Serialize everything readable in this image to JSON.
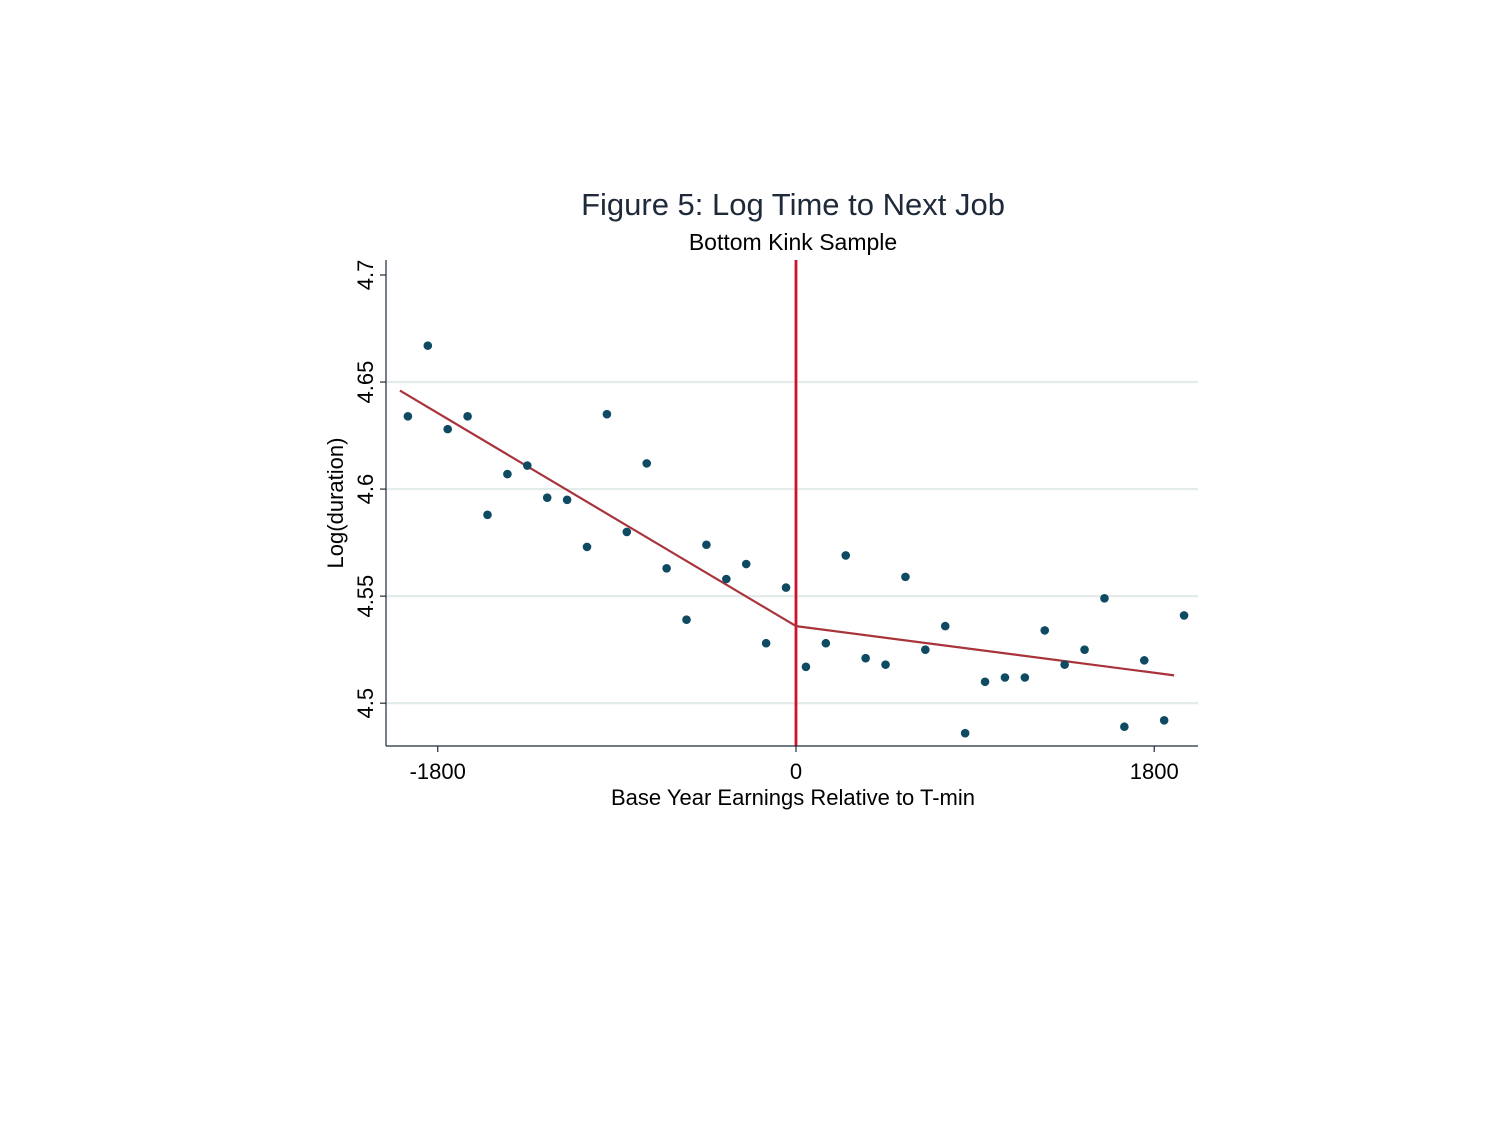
{
  "chart_data": {
    "type": "scatter",
    "title": "Figure 5: Log Time to Next Job",
    "subtitle": "Bottom Kink Sample",
    "xlabel": "Base Year Earnings Relative to T-min",
    "ylabel": "Log(duration)",
    "xlim": [
      -2060,
      2020
    ],
    "ylim": [
      4.48,
      4.707
    ],
    "xticks": [
      -1800,
      0,
      1800
    ],
    "xtick_labels": [
      "-1800",
      "0",
      "1800"
    ],
    "yticks": [
      4.5,
      4.55,
      4.6,
      4.65,
      4.7
    ],
    "ytick_labels": [
      "4.5",
      "4.55",
      "4.6",
      "4.65",
      "4.7"
    ],
    "grid": "horizontal",
    "kink_x": 0,
    "colors": {
      "points": "#0e4a62",
      "fit": "#a8333a",
      "kink": "#d0102a",
      "grid": "#e3ece9",
      "text": "#1e2a3a"
    },
    "points": [
      {
        "x": -1950,
        "y": 4.634
      },
      {
        "x": -1850,
        "y": 4.667
      },
      {
        "x": -1750,
        "y": 4.628
      },
      {
        "x": -1650,
        "y": 4.634
      },
      {
        "x": -1550,
        "y": 4.588
      },
      {
        "x": -1450,
        "y": 4.607
      },
      {
        "x": -1350,
        "y": 4.611
      },
      {
        "x": -1250,
        "y": 4.596
      },
      {
        "x": -1150,
        "y": 4.595
      },
      {
        "x": -1050,
        "y": 4.573
      },
      {
        "x": -950,
        "y": 4.635
      },
      {
        "x": -850,
        "y": 4.58
      },
      {
        "x": -750,
        "y": 4.612
      },
      {
        "x": -650,
        "y": 4.563
      },
      {
        "x": -550,
        "y": 4.539
      },
      {
        "x": -450,
        "y": 4.574
      },
      {
        "x": -350,
        "y": 4.558
      },
      {
        "x": -250,
        "y": 4.565
      },
      {
        "x": -150,
        "y": 4.528
      },
      {
        "x": -50,
        "y": 4.554
      },
      {
        "x": 50,
        "y": 4.517
      },
      {
        "x": 150,
        "y": 4.528
      },
      {
        "x": 250,
        "y": 4.569
      },
      {
        "x": 350,
        "y": 4.521
      },
      {
        "x": 450,
        "y": 4.518
      },
      {
        "x": 550,
        "y": 4.559
      },
      {
        "x": 650,
        "y": 4.525
      },
      {
        "x": 750,
        "y": 4.536
      },
      {
        "x": 850,
        "y": 4.486
      },
      {
        "x": 950,
        "y": 4.51
      },
      {
        "x": 1050,
        "y": 4.512
      },
      {
        "x": 1150,
        "y": 4.512
      },
      {
        "x": 1250,
        "y": 4.534
      },
      {
        "x": 1350,
        "y": 4.518
      },
      {
        "x": 1450,
        "y": 4.525
      },
      {
        "x": 1550,
        "y": 4.549
      },
      {
        "x": 1650,
        "y": 4.489
      },
      {
        "x": 1750,
        "y": 4.52
      },
      {
        "x": 1850,
        "y": 4.492
      },
      {
        "x": 1950,
        "y": 4.541
      }
    ],
    "fit_lines": [
      {
        "x": [
          -1990,
          0
        ],
        "y": [
          4.646,
          4.536
        ]
      },
      {
        "x": [
          0,
          1900
        ],
        "y": [
          4.536,
          4.513
        ]
      }
    ]
  }
}
